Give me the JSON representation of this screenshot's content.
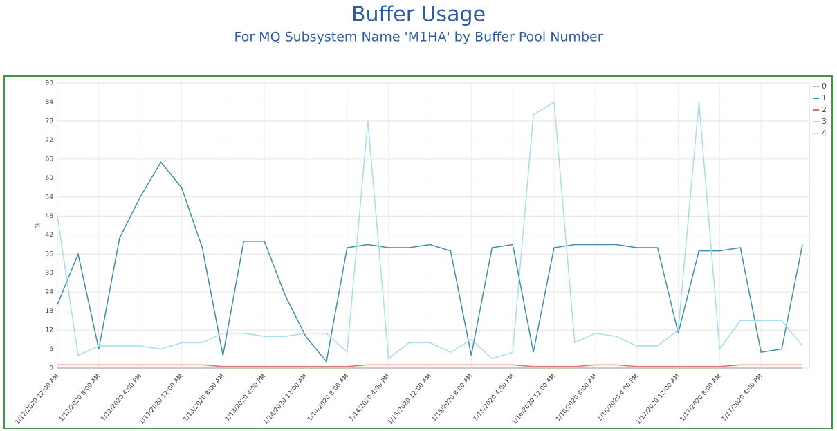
{
  "chart_data": {
    "type": "line",
    "title": "Buffer Usage",
    "subtitle": "For MQ Subsystem Name 'M1HA' by Buffer Pool Number",
    "ylabel": "%",
    "categories": [
      "1/12/2020 12:00 AM",
      null,
      "1/12/2020 8:00 AM",
      null,
      "1/12/2020 4:00 PM",
      null,
      "1/13/2020 12:00 AM",
      null,
      "1/13/2020 8:00 AM",
      null,
      "1/13/2020 4:00 PM",
      null,
      "1/14/2020 12:00 AM",
      null,
      "1/14/2020 8:00 AM",
      null,
      "1/14/2020 4:00 PM",
      null,
      "1/15/2020 12:00 AM",
      null,
      "1/15/2020 8:00 AM",
      null,
      "1/15/2020 4:00 PM",
      null,
      "1/16/2020 12:00 AM",
      null,
      "1/16/2020 8:00 AM",
      null,
      "1/16/2020 4:00 PM",
      null,
      "1/17/2020 12:00 AM",
      null,
      "1/17/2020 8:00 AM",
      null,
      "1/17/2020 4:00 PM",
      null,
      null
    ],
    "series": [
      {
        "name": "0",
        "color": "#b8b8b8",
        "values": [
          0,
          0,
          0,
          0,
          0,
          0,
          0,
          0,
          0,
          0,
          0,
          0,
          0,
          0,
          0,
          0,
          0,
          0,
          0,
          0,
          0,
          0,
          0,
          0,
          0,
          0,
          0,
          0,
          0,
          0,
          0,
          0,
          0,
          0,
          0,
          0,
          0
        ]
      },
      {
        "name": "1",
        "color": "#3d8fa5",
        "values": [
          20,
          36,
          6,
          41,
          54,
          65,
          57,
          38,
          4,
          40,
          40,
          23,
          10,
          2,
          38,
          39,
          38,
          38,
          39,
          37,
          4,
          38,
          39,
          5,
          38,
          39,
          39,
          39,
          38,
          38,
          11,
          37,
          37,
          38,
          5,
          6,
          39
        ]
      },
      {
        "name": "2",
        "color": "#e06b6b",
        "values": [
          1,
          1,
          1,
          1,
          1,
          1,
          1,
          1,
          0.5,
          0.5,
          0.5,
          0.5,
          0.5,
          0.5,
          0.5,
          1,
          1,
          1,
          1,
          1,
          1,
          1,
          1,
          0.5,
          0.5,
          0.5,
          1,
          1,
          0.5,
          0.5,
          0.5,
          0.5,
          0.5,
          1,
          1,
          1,
          1
        ]
      },
      {
        "name": "3",
        "color": "#a9dbe9",
        "values": [
          48,
          4,
          7,
          7,
          7,
          6,
          8,
          8,
          11,
          11,
          10,
          10,
          11,
          11,
          5,
          78,
          3,
          8,
          8,
          5,
          9,
          3,
          5,
          80,
          84,
          8,
          11,
          10,
          7,
          7,
          12,
          84,
          6,
          15,
          15,
          15,
          7
        ]
      },
      {
        "name": "4",
        "color": "#d6d6d6",
        "values": [
          0.3,
          0.3,
          0.3,
          0.3,
          0.3,
          0.3,
          0.3,
          0.3,
          0.3,
          0.3,
          0.3,
          0.3,
          0.3,
          0.3,
          0.3,
          0.3,
          0.3,
          0.3,
          0.3,
          0.3,
          0.3,
          0.3,
          0.3,
          0.3,
          0.3,
          0.3,
          0.3,
          0.3,
          0.3,
          0.3,
          0.3,
          0.3,
          0.3,
          0.3,
          0.3,
          0.3,
          0.3
        ]
      }
    ],
    "ylim": [
      0,
      90
    ],
    "yticks": [
      0,
      6,
      12,
      18,
      24,
      30,
      36,
      42,
      48,
      54,
      60,
      66,
      72,
      78,
      84,
      90
    ],
    "grid": true,
    "legend": "top-right"
  }
}
